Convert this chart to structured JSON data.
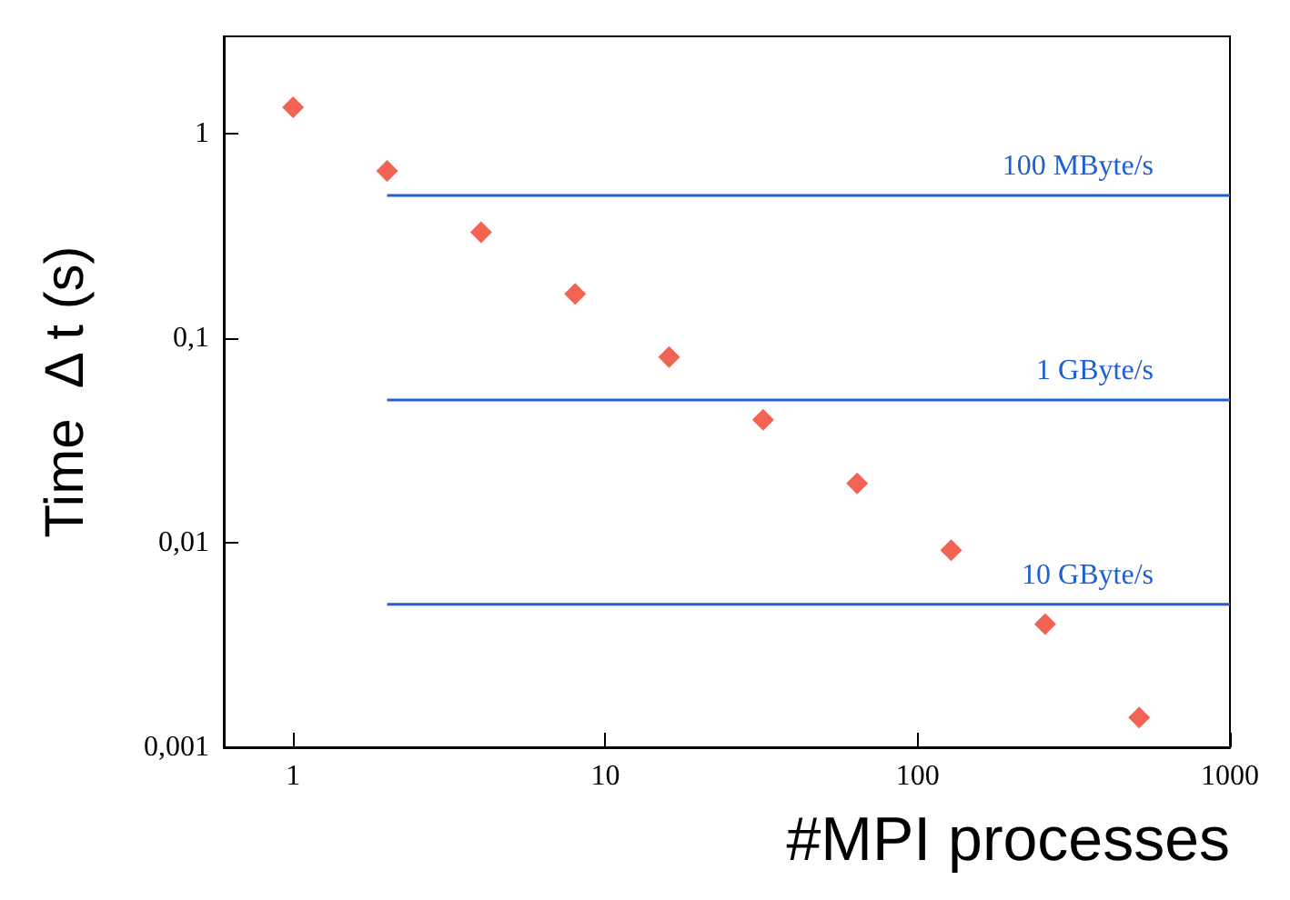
{
  "chart_data": {
    "type": "scatter",
    "xlabel": "#MPI processes",
    "ylabel": "Time  Δ t (s)",
    "log": "xy",
    "marker": "diamond",
    "grid": false,
    "legend": false,
    "xlim": [
      0.6,
      1000
    ],
    "xticks": [
      1,
      10,
      100,
      1000
    ],
    "ylim": [
      0.001,
      3
    ],
    "yticks": [
      {
        "value": 0.001,
        "label": "0,001"
      },
      {
        "value": 0.01,
        "label": "0,01"
      },
      {
        "value": 0.1,
        "label": "0,1"
      },
      {
        "value": 1,
        "label": "1"
      }
    ],
    "series": [
      {
        "color": "#f03c28",
        "x": [
          1,
          2,
          4,
          8,
          16,
          32,
          64,
          128,
          256,
          512
        ],
        "values": [
          1.35,
          0.66,
          0.33,
          0.165,
          0.081,
          0.04,
          0.0195,
          0.0092,
          0.004,
          0.0014
        ]
      },
      {
        "type": "line",
        "name": "100 MByte/s",
        "color": "#1f5fd6",
        "marker": "none",
        "x": [
          2,
          1000
        ],
        "values": [
          0.5,
          0.5
        ]
      },
      {
        "type": "line",
        "name": "1 GByte/s",
        "color": "#1f5fd6",
        "marker": "none",
        "x": [
          2,
          1000
        ],
        "values": [
          0.05,
          0.05
        ]
      },
      {
        "type": "line",
        "name": "10 GByte/s",
        "color": "#1f5fd6",
        "marker": "none",
        "x": [
          2,
          1000
        ],
        "values": [
          0.005,
          0.005
        ]
      }
    ]
  }
}
